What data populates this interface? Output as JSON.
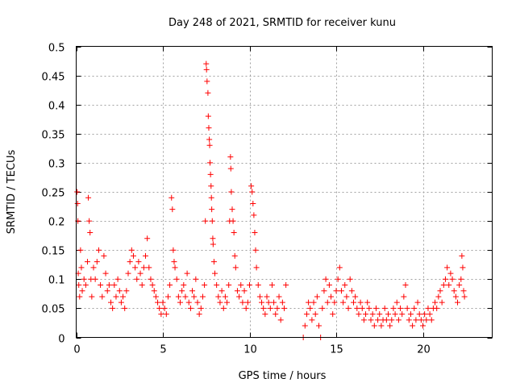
{
  "chart_data": {
    "type": "scatter",
    "title": "Day 248 of 2021, SRMTID for receiver kunu",
    "xlabel": "GPS time / hours",
    "ylabel": "SRMTID / TECUs",
    "xlim": [
      0,
      24
    ],
    "ylim": [
      0,
      0.5
    ],
    "xticks": [
      0,
      5,
      10,
      15,
      20
    ],
    "yticks": [
      0,
      0.05,
      0.1,
      0.15,
      0.2,
      0.25,
      0.3,
      0.35,
      0.4,
      0.45,
      0.5
    ],
    "grid": true,
    "marker": "+",
    "color": "#ff0000",
    "series": [
      {
        "name": "SRMTID",
        "points": [
          [
            0.05,
            0.25
          ],
          [
            0.08,
            0.23
          ],
          [
            0.1,
            0.2
          ],
          [
            0.12,
            0.11
          ],
          [
            0.15,
            0.09
          ],
          [
            0.2,
            0.07
          ],
          [
            0.25,
            0.15
          ],
          [
            0.3,
            0.12
          ],
          [
            0.35,
            0.08
          ],
          [
            0.45,
            0.1
          ],
          [
            0.55,
            0.09
          ],
          [
            0.65,
            0.13
          ],
          [
            0.7,
            0.24
          ],
          [
            0.75,
            0.2
          ],
          [
            0.8,
            0.18
          ],
          [
            0.85,
            0.1
          ],
          [
            0.9,
            0.07
          ],
          [
            1.0,
            0.12
          ],
          [
            1.1,
            0.1
          ],
          [
            1.2,
            0.13
          ],
          [
            1.3,
            0.15
          ],
          [
            1.4,
            0.09
          ],
          [
            1.5,
            0.07
          ],
          [
            1.6,
            0.14
          ],
          [
            1.7,
            0.11
          ],
          [
            1.8,
            0.08
          ],
          [
            1.9,
            0.09
          ],
          [
            2.0,
            0.06
          ],
          [
            2.1,
            0.05
          ],
          [
            2.2,
            0.09
          ],
          [
            2.3,
            0.07
          ],
          [
            2.4,
            0.1
          ],
          [
            2.5,
            0.08
          ],
          [
            2.6,
            0.06
          ],
          [
            2.7,
            0.07
          ],
          [
            2.8,
            0.05
          ],
          [
            2.9,
            0.08
          ],
          [
            3.0,
            0.11
          ],
          [
            3.1,
            0.13
          ],
          [
            3.2,
            0.15
          ],
          [
            3.3,
            0.14
          ],
          [
            3.4,
            0.12
          ],
          [
            3.5,
            0.1
          ],
          [
            3.6,
            0.13
          ],
          [
            3.7,
            0.11
          ],
          [
            3.8,
            0.09
          ],
          [
            3.9,
            0.12
          ],
          [
            4.0,
            0.14
          ],
          [
            4.1,
            0.17
          ],
          [
            4.2,
            0.12
          ],
          [
            4.3,
            0.1
          ],
          [
            4.4,
            0.09
          ],
          [
            4.5,
            0.08
          ],
          [
            4.6,
            0.07
          ],
          [
            4.7,
            0.06
          ],
          [
            4.8,
            0.05
          ],
          [
            4.9,
            0.04
          ],
          [
            5.0,
            0.06
          ],
          [
            5.1,
            0.05
          ],
          [
            5.2,
            0.04
          ],
          [
            5.3,
            0.07
          ],
          [
            5.4,
            0.09
          ],
          [
            5.5,
            0.24
          ],
          [
            5.55,
            0.22
          ],
          [
            5.6,
            0.15
          ],
          [
            5.65,
            0.13
          ],
          [
            5.7,
            0.12
          ],
          [
            5.8,
            0.1
          ],
          [
            5.9,
            0.07
          ],
          [
            6.0,
            0.06
          ],
          [
            6.1,
            0.08
          ],
          [
            6.2,
            0.09
          ],
          [
            6.3,
            0.07
          ],
          [
            6.4,
            0.11
          ],
          [
            6.5,
            0.06
          ],
          [
            6.6,
            0.05
          ],
          [
            6.7,
            0.08
          ],
          [
            6.8,
            0.07
          ],
          [
            6.9,
            0.1
          ],
          [
            7.0,
            0.06
          ],
          [
            7.1,
            0.04
          ],
          [
            7.2,
            0.05
          ],
          [
            7.3,
            0.07
          ],
          [
            7.4,
            0.09
          ],
          [
            7.45,
            0.2
          ],
          [
            7.5,
            0.47
          ],
          [
            7.52,
            0.46
          ],
          [
            7.55,
            0.44
          ],
          [
            7.6,
            0.42
          ],
          [
            7.62,
            0.38
          ],
          [
            7.65,
            0.36
          ],
          [
            7.68,
            0.34
          ],
          [
            7.7,
            0.33
          ],
          [
            7.72,
            0.3
          ],
          [
            7.75,
            0.28
          ],
          [
            7.78,
            0.26
          ],
          [
            7.8,
            0.24
          ],
          [
            7.82,
            0.22
          ],
          [
            7.85,
            0.2
          ],
          [
            7.88,
            0.17
          ],
          [
            7.9,
            0.16
          ],
          [
            7.95,
            0.13
          ],
          [
            8.0,
            0.11
          ],
          [
            8.1,
            0.09
          ],
          [
            8.2,
            0.07
          ],
          [
            8.3,
            0.06
          ],
          [
            8.4,
            0.08
          ],
          [
            8.5,
            0.05
          ],
          [
            8.6,
            0.07
          ],
          [
            8.7,
            0.06
          ],
          [
            8.8,
            0.09
          ],
          [
            8.85,
            0.2
          ],
          [
            8.9,
            0.31
          ],
          [
            8.92,
            0.29
          ],
          [
            8.95,
            0.25
          ],
          [
            9.0,
            0.22
          ],
          [
            9.05,
            0.2
          ],
          [
            9.1,
            0.18
          ],
          [
            9.15,
            0.14
          ],
          [
            9.2,
            0.12
          ],
          [
            9.3,
            0.08
          ],
          [
            9.4,
            0.07
          ],
          [
            9.5,
            0.09
          ],
          [
            9.6,
            0.06
          ],
          [
            9.7,
            0.08
          ],
          [
            9.8,
            0.05
          ],
          [
            9.9,
            0.06
          ],
          [
            10.0,
            0.09
          ],
          [
            10.1,
            0.26
          ],
          [
            10.15,
            0.25
          ],
          [
            10.2,
            0.23
          ],
          [
            10.25,
            0.21
          ],
          [
            10.3,
            0.18
          ],
          [
            10.35,
            0.15
          ],
          [
            10.4,
            0.12
          ],
          [
            10.5,
            0.09
          ],
          [
            10.6,
            0.07
          ],
          [
            10.7,
            0.06
          ],
          [
            10.8,
            0.05
          ],
          [
            10.9,
            0.04
          ],
          [
            11.0,
            0.07
          ],
          [
            11.1,
            0.06
          ],
          [
            11.2,
            0.05
          ],
          [
            11.3,
            0.09
          ],
          [
            11.4,
            0.06
          ],
          [
            11.5,
            0.04
          ],
          [
            11.6,
            0.05
          ],
          [
            11.7,
            0.07
          ],
          [
            11.8,
            0.03
          ],
          [
            11.9,
            0.06
          ],
          [
            12.0,
            0.05
          ],
          [
            12.1,
            0.09
          ],
          [
            13.1,
            0.0
          ],
          [
            13.2,
            0.02
          ],
          [
            13.3,
            0.04
          ],
          [
            13.4,
            0.06
          ],
          [
            13.5,
            0.05
          ],
          [
            13.6,
            0.03
          ],
          [
            13.7,
            0.06
          ],
          [
            13.8,
            0.04
          ],
          [
            13.9,
            0.07
          ],
          [
            14.0,
            0.02
          ],
          [
            14.1,
            0.0
          ],
          [
            14.2,
            0.05
          ],
          [
            14.3,
            0.08
          ],
          [
            14.4,
            0.1
          ],
          [
            14.5,
            0.06
          ],
          [
            14.6,
            0.09
          ],
          [
            14.7,
            0.07
          ],
          [
            14.8,
            0.04
          ],
          [
            14.9,
            0.06
          ],
          [
            15.0,
            0.08
          ],
          [
            15.1,
            0.1
          ],
          [
            15.2,
            0.12
          ],
          [
            15.3,
            0.08
          ],
          [
            15.4,
            0.06
          ],
          [
            15.5,
            0.09
          ],
          [
            15.6,
            0.07
          ],
          [
            15.7,
            0.05
          ],
          [
            15.8,
            0.1
          ],
          [
            15.9,
            0.08
          ],
          [
            16.0,
            0.06
          ],
          [
            16.1,
            0.07
          ],
          [
            16.2,
            0.05
          ],
          [
            16.3,
            0.04
          ],
          [
            16.4,
            0.06
          ],
          [
            16.5,
            0.05
          ],
          [
            16.6,
            0.03
          ],
          [
            16.7,
            0.04
          ],
          [
            16.8,
            0.06
          ],
          [
            16.9,
            0.05
          ],
          [
            17.0,
            0.03
          ],
          [
            17.1,
            0.04
          ],
          [
            17.2,
            0.02
          ],
          [
            17.3,
            0.05
          ],
          [
            17.4,
            0.03
          ],
          [
            17.5,
            0.04
          ],
          [
            17.6,
            0.02
          ],
          [
            17.7,
            0.03
          ],
          [
            17.8,
            0.05
          ],
          [
            17.9,
            0.03
          ],
          [
            18.0,
            0.04
          ],
          [
            18.1,
            0.02
          ],
          [
            18.2,
            0.03
          ],
          [
            18.3,
            0.05
          ],
          [
            18.4,
            0.04
          ],
          [
            18.5,
            0.06
          ],
          [
            18.6,
            0.03
          ],
          [
            18.7,
            0.05
          ],
          [
            18.8,
            0.04
          ],
          [
            18.9,
            0.07
          ],
          [
            19.0,
            0.09
          ],
          [
            19.1,
            0.05
          ],
          [
            19.2,
            0.03
          ],
          [
            19.3,
            0.04
          ],
          [
            19.4,
            0.02
          ],
          [
            19.5,
            0.05
          ],
          [
            19.6,
            0.03
          ],
          [
            19.7,
            0.06
          ],
          [
            19.8,
            0.04
          ],
          [
            19.9,
            0.03
          ],
          [
            20.0,
            0.02
          ],
          [
            20.1,
            0.04
          ],
          [
            20.2,
            0.03
          ],
          [
            20.3,
            0.05
          ],
          [
            20.4,
            0.04
          ],
          [
            20.5,
            0.03
          ],
          [
            20.6,
            0.05
          ],
          [
            20.7,
            0.06
          ],
          [
            20.8,
            0.05
          ],
          [
            20.9,
            0.07
          ],
          [
            21.0,
            0.08
          ],
          [
            21.1,
            0.06
          ],
          [
            21.2,
            0.09
          ],
          [
            21.3,
            0.1
          ],
          [
            21.4,
            0.12
          ],
          [
            21.5,
            0.09
          ],
          [
            21.6,
            0.11
          ],
          [
            21.7,
            0.1
          ],
          [
            21.8,
            0.08
          ],
          [
            21.9,
            0.07
          ],
          [
            22.0,
            0.06
          ],
          [
            22.1,
            0.09
          ],
          [
            22.2,
            0.1
          ],
          [
            22.25,
            0.14
          ],
          [
            22.3,
            0.12
          ],
          [
            22.35,
            0.08
          ],
          [
            22.4,
            0.07
          ]
        ]
      }
    ]
  }
}
